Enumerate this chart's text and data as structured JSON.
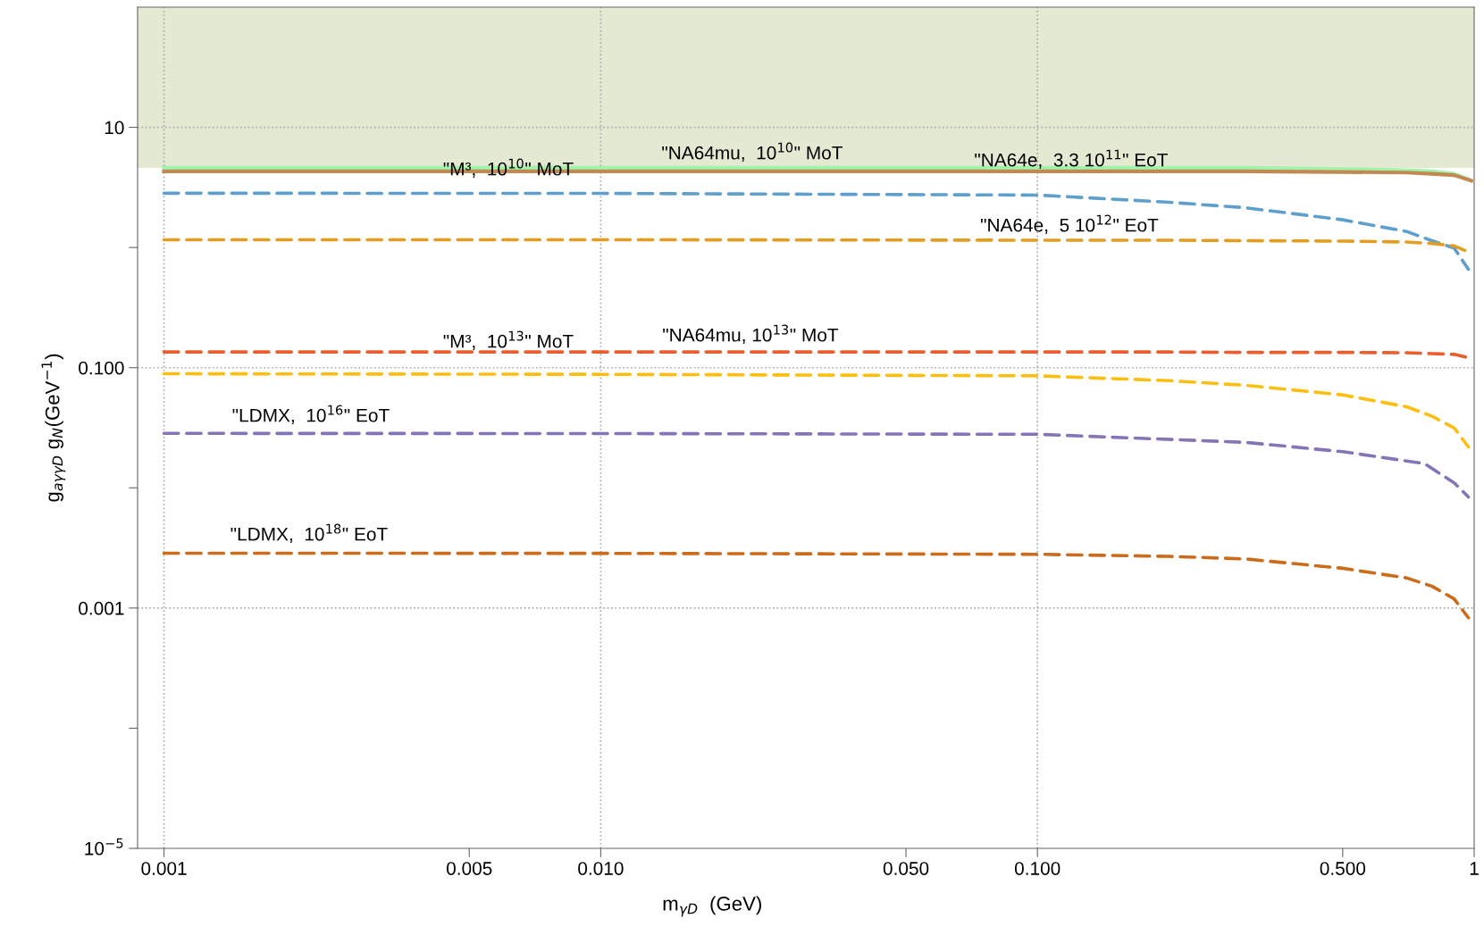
{
  "chart_data": {
    "type": "line",
    "xlabel": "m$_{γD}$  (GeV)",
    "ylabel": "g$_{aγγD}$ g$_{N}$(GeV$^{−1}$)",
    "log": "xy",
    "xlim": [
      0.00087,
      1.0
    ],
    "bands": [
      {
        "axis": "y",
        "from": 4.6,
        "to": 100,
        "label": null,
        "color": "#e4e9d2"
      }
    ],
    "ylim": [
      1e-05,
      100
    ],
    "xticks": [
      0.001,
      {
        "value": 0.005,
        "label": "0.005"
      },
      {
        "value": 0.01,
        "label": "0.010"
      },
      {
        "value": 0.05,
        "label": "0.050"
      },
      {
        "value": 0.1,
        "label": "0.100"
      },
      {
        "value": 0.5,
        "label": "0.500"
      },
      1
    ],
    "yticks": [
      {
        "value": 1e-05,
        "label": "10$^{−5}$"
      },
      {
        "value": 0.0001,
        "label": null
      },
      0.001,
      {
        "value": 0.01,
        "label": null
      },
      {
        "value": 0.1,
        "label": "0.100"
      },
      {
        "value": 1,
        "label": null
      },
      10
    ],
    "series": [
      {
        "color": "#a3f2ac",
        "line_style": "solid",
        "x": [
          0.001,
          0.01,
          0.1,
          0.2,
          0.3,
          0.5,
          0.7,
          0.8,
          0.9,
          0.97
        ],
        "values": [
          4.6,
          4.6,
          4.6,
          4.6,
          4.6,
          4.5,
          4.4,
          4.3,
          4.1,
          3.7
        ]
      },
      {
        "color": "#c08a52",
        "line_style": "solid",
        "x": [
          0.001,
          0.01,
          0.1,
          0.2,
          0.3,
          0.5,
          0.7,
          0.8,
          0.9,
          0.985
        ],
        "values": [
          4.3,
          4.3,
          4.3,
          4.3,
          4.3,
          4.25,
          4.2,
          4.1,
          4.0,
          3.6
        ]
      },
      {
        "color": "#5e9fcb",
        "line_style": "dashed",
        "x": [
          0.001,
          0.01,
          0.1,
          0.2,
          0.3,
          0.5,
          0.7,
          0.8,
          0.9,
          0.97
        ],
        "values": [
          2.83,
          2.82,
          2.73,
          2.38,
          2.14,
          1.7,
          1.36,
          1.14,
          0.99,
          0.66
        ]
      },
      {
        "color": "#e39e21",
        "line_style": "dashed",
        "x": [
          0.001,
          0.01,
          0.1,
          0.2,
          0.3,
          0.5,
          0.7,
          0.8,
          0.9,
          0.97
        ],
        "values": [
          1.16,
          1.16,
          1.15,
          1.15,
          1.14,
          1.13,
          1.11,
          1.08,
          1.03,
          0.92
        ]
      },
      {
        "color": "#eb5d2f",
        "line_style": "dashed",
        "x": [
          0.001,
          0.01,
          0.1,
          0.2,
          0.3,
          0.5,
          0.7,
          0.8,
          0.9,
          0.97
        ],
        "values": [
          0.135,
          0.135,
          0.135,
          0.135,
          0.134,
          0.134,
          0.133,
          0.131,
          0.129,
          0.121
        ]
      },
      {
        "color": "#fcbe10",
        "line_style": "dashed",
        "x": [
          0.001,
          0.01,
          0.1,
          0.2,
          0.3,
          0.5,
          0.7,
          0.8,
          0.9,
          0.97
        ],
        "values": [
          0.089,
          0.088,
          0.0855,
          0.078,
          0.0713,
          0.0594,
          0.0473,
          0.0395,
          0.0315,
          0.0219
        ]
      },
      {
        "color": "#8675b6",
        "line_style": "dashed",
        "x": [
          0.001,
          0.01,
          0.1,
          0.3,
          0.5,
          0.77,
          0.9,
          0.97
        ],
        "values": [
          0.0284,
          0.0283,
          0.0279,
          0.0239,
          0.02,
          0.0159,
          0.011,
          0.0084
        ]
      },
      {
        "color": "#cb6b1c",
        "line_style": "dashed",
        "x": [
          0.001,
          0.01,
          0.1,
          0.2,
          0.3,
          0.5,
          0.7,
          0.8,
          0.9,
          0.97
        ],
        "values": [
          0.00286,
          0.00285,
          0.0028,
          0.00269,
          0.00256,
          0.00214,
          0.00178,
          0.00152,
          0.00119,
          0.00083
        ]
      }
    ],
    "ref_lines": [
      {
        "axis": "x",
        "value": 0.001,
        "label": null,
        "color": "#aaaaaa",
        "line_style": "dotted"
      },
      {
        "axis": "x",
        "value": 0.01,
        "label": null,
        "color": "#aaaaaa",
        "line_style": "dotted"
      },
      {
        "axis": "x",
        "value": 0.1,
        "label": null,
        "color": "#aaaaaa",
        "line_style": "dotted"
      },
      {
        "axis": "y",
        "value": 10,
        "label": null,
        "color": "#aaaaaa",
        "line_style": "dotted"
      },
      {
        "axis": "y",
        "value": 0.1,
        "label": null,
        "color": "#aaaaaa",
        "line_style": "dotted"
      },
      {
        "axis": "y",
        "value": 0.001,
        "label": null,
        "color": "#aaaaaa",
        "line_style": "dotted"
      }
    ],
    "annotations": [
      "\"NA64mu,  10$^{10}$\" MoT",
      "\"M³,  10$^{10}$\" MoT",
      "\"NA64e,  3.3 10$^{11}$\" EoT",
      "\"NA64e,  5 10$^{12}$\" EoT",
      "\"NA64mu, 10$^{13}$\" MoT",
      "\"M³,  10$^{13}$\" MoT",
      "\"LDMX,  10$^{16}$\" EoT",
      "\"LDMX,  10$^{18}$\" EoT"
    ],
    "grid": false,
    "legend": false
  }
}
